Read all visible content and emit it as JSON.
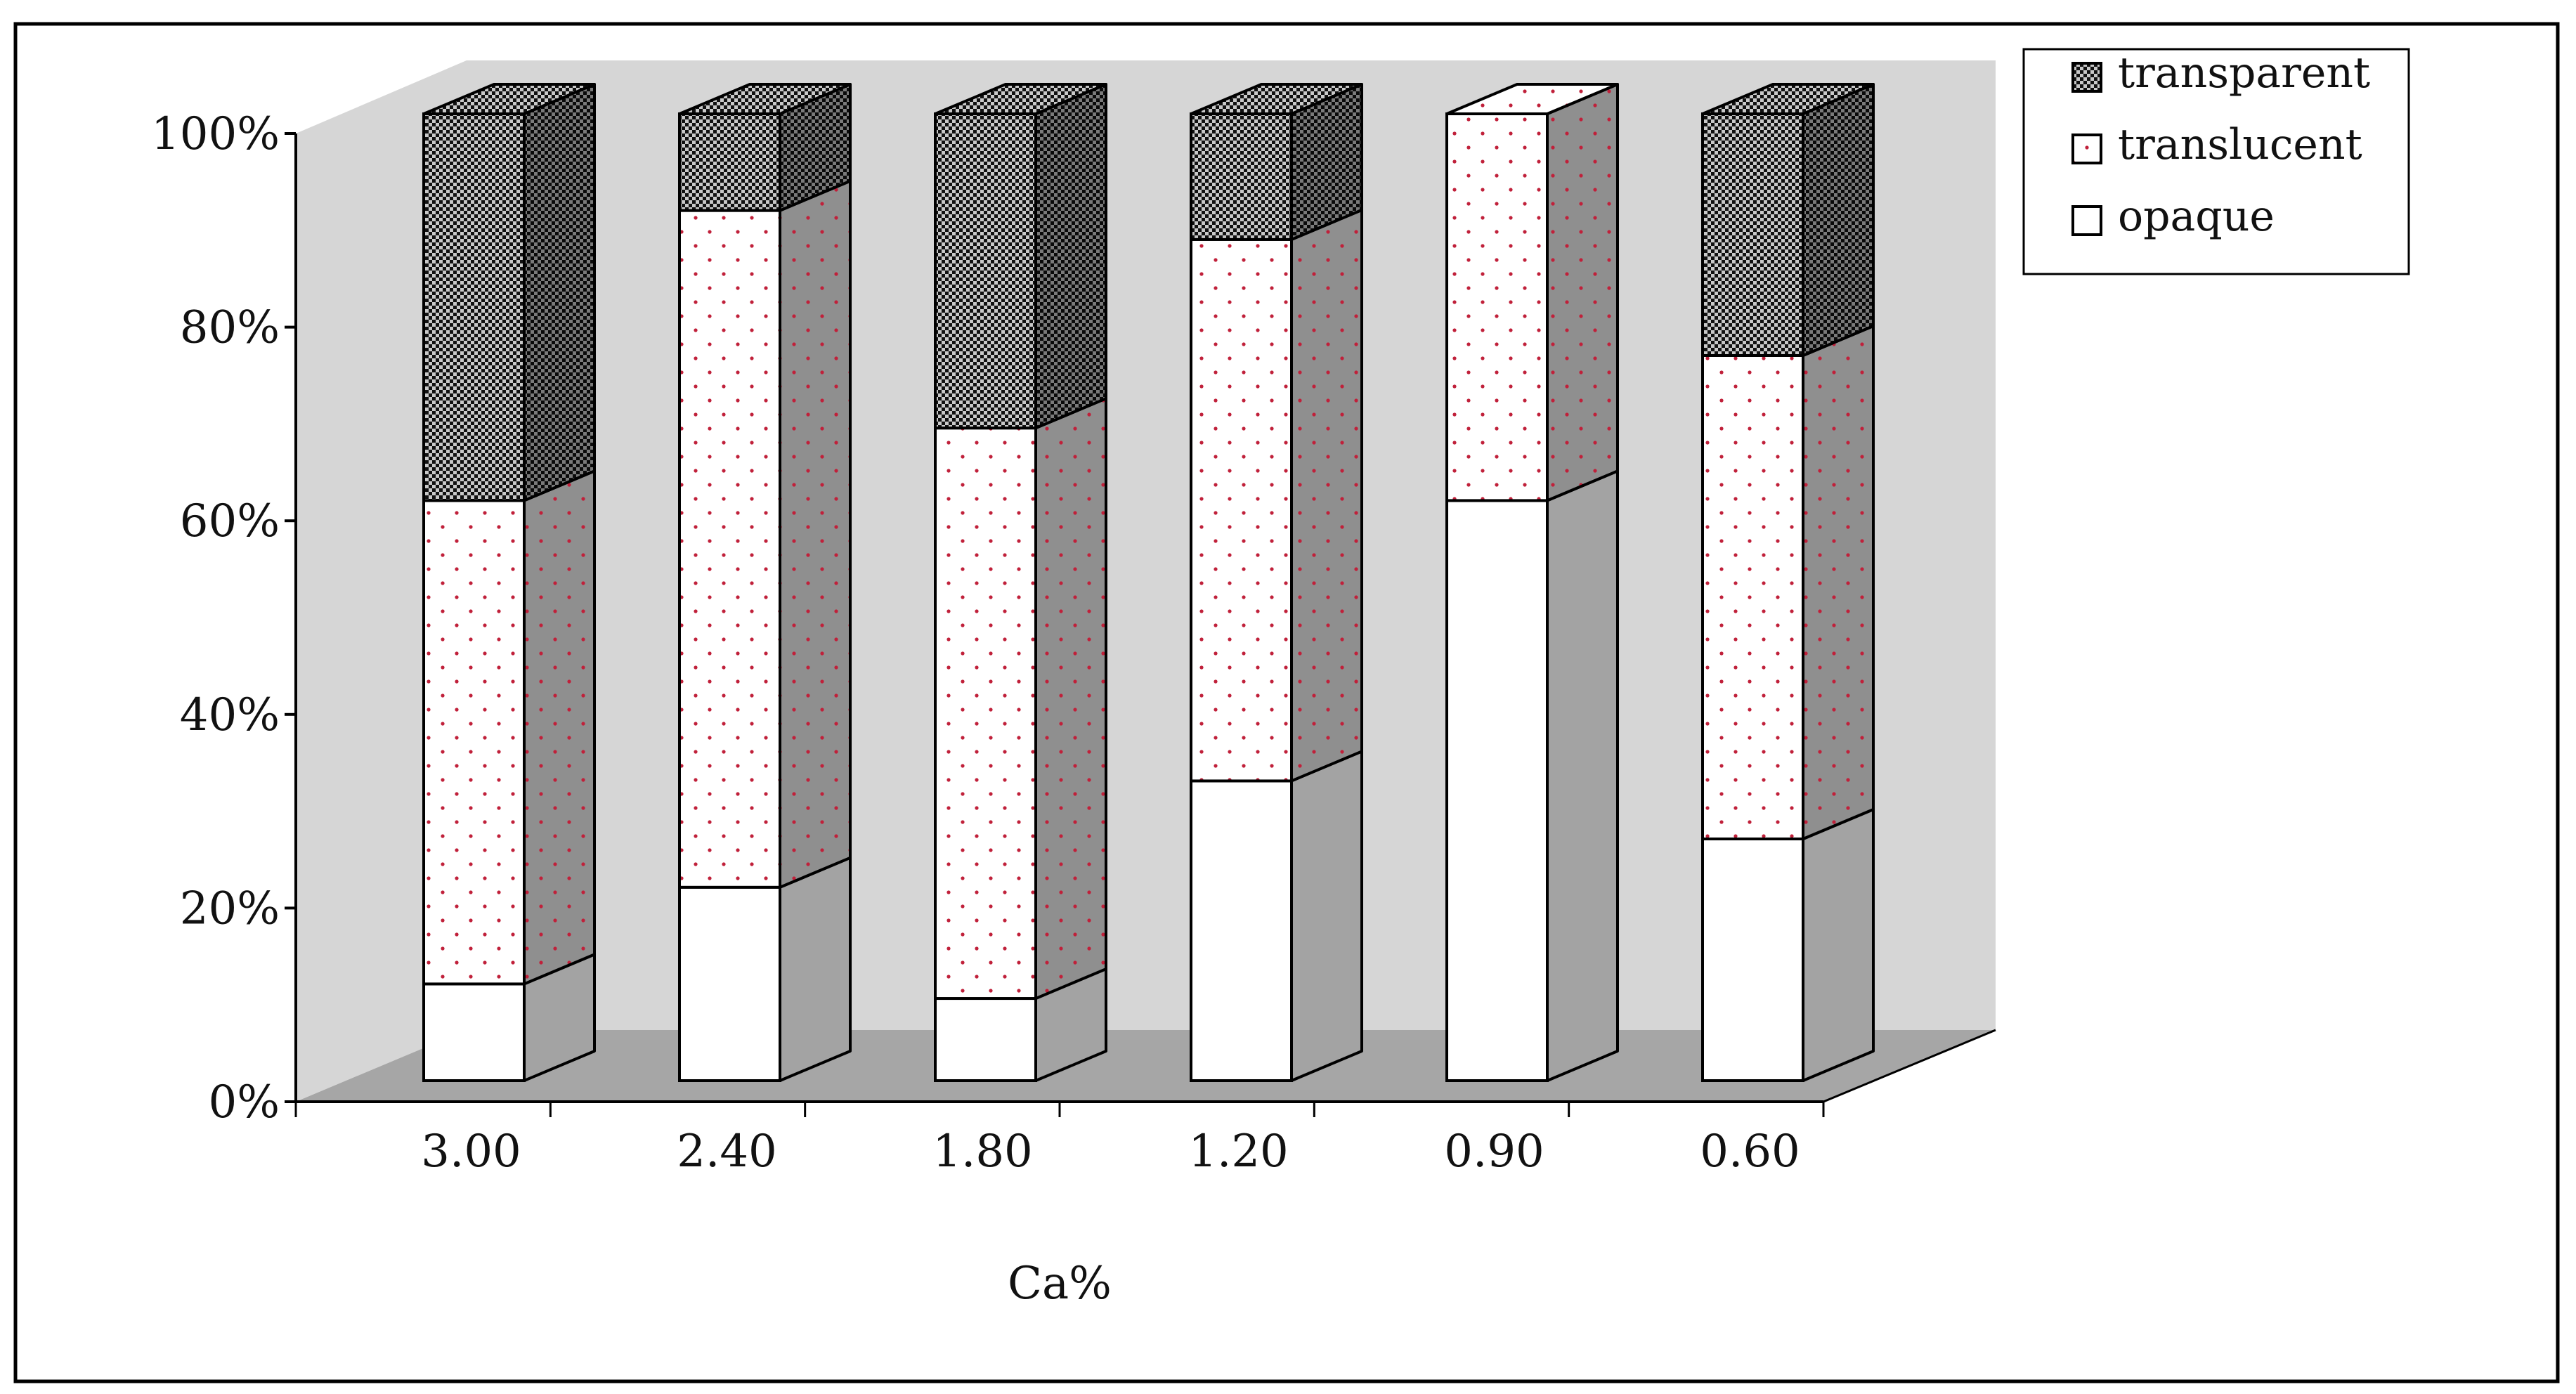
{
  "chart_data": {
    "type": "bar",
    "stacked": true,
    "stack_mode": "percent",
    "categories": [
      "3.00",
      "2.40",
      "1.80",
      "1.20",
      "0.90",
      "0.60"
    ],
    "series": [
      {
        "name": "opaque",
        "values": [
          10,
          20,
          8.5,
          31,
          60,
          25
        ]
      },
      {
        "name": "translucent",
        "values": [
          50,
          70,
          59,
          56,
          40,
          50
        ]
      },
      {
        "name": "transparent",
        "values": [
          40,
          10,
          32.5,
          13,
          0,
          25
        ]
      }
    ],
    "legend_order": [
      "transparent",
      "translucent",
      "opaque"
    ],
    "xlabel": "Ca%",
    "ylabel": "",
    "ylim": [
      0,
      100
    ],
    "yticks": [
      "0%",
      "20%",
      "40%",
      "60%",
      "80%",
      "100%"
    ],
    "tick_values": [
      0,
      20,
      40,
      60,
      80,
      100
    ],
    "grid": false,
    "legend_position": "top-right",
    "colors": {
      "background_wall": "#d6d6d6",
      "floor": "#a6a6a6",
      "opaque_front": "#ffffff",
      "opaque_side": "#a3a3a3",
      "translucent_front": "#ffffff",
      "translucent_side": "#8f8f8f",
      "translucent_dot": "#c0203a",
      "transparent_dark": "#111111",
      "transparent_light": "#c8c8c8"
    }
  }
}
